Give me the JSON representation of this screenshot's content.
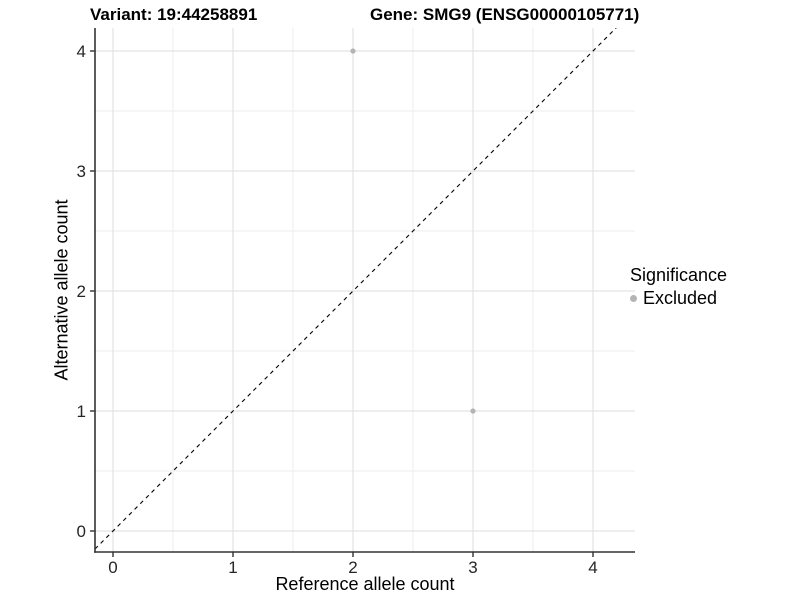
{
  "header": {
    "variant_title": "Variant: 19:44258891",
    "gene_title": "Gene: SMG9 (ENSG00000105771)"
  },
  "chart_data": {
    "type": "scatter",
    "title_left": "Variant: 19:44258891",
    "title_right": "Gene: SMG9 (ENSG00000105771)",
    "xlabel": "Reference allele count",
    "ylabel": "Alternative allele count",
    "xlim": [
      -0.15,
      4.35
    ],
    "ylim": [
      -0.175,
      4.19
    ],
    "xticks": [
      0,
      1,
      2,
      3,
      4
    ],
    "yticks": [
      0,
      1,
      2,
      3,
      4
    ],
    "minor_ticks_x": [
      0.5,
      1.5,
      2.5,
      3.5
    ],
    "minor_ticks_y": [
      0.5,
      1.5,
      2.5,
      3.5
    ],
    "grid": true,
    "series": [
      {
        "name": "Excluded",
        "color": "#b4b4b4",
        "points": [
          {
            "x": 2,
            "y": 4
          },
          {
            "x": 3,
            "y": 1
          }
        ]
      }
    ],
    "reference_line": {
      "slope": 1,
      "intercept": 0,
      "style": "dashed",
      "color": "#000000"
    },
    "legend": {
      "title": "Significance",
      "position": "right",
      "entries": [
        {
          "label": "Excluded",
          "color": "#b4b4b4"
        }
      ]
    },
    "colors": {
      "point": "#b4b4b4",
      "grid_major": "#e3e3e3",
      "grid_minor": "#eeeeee",
      "axis_line": "#333333",
      "tick_text": "#262626",
      "background": "#ffffff"
    }
  }
}
